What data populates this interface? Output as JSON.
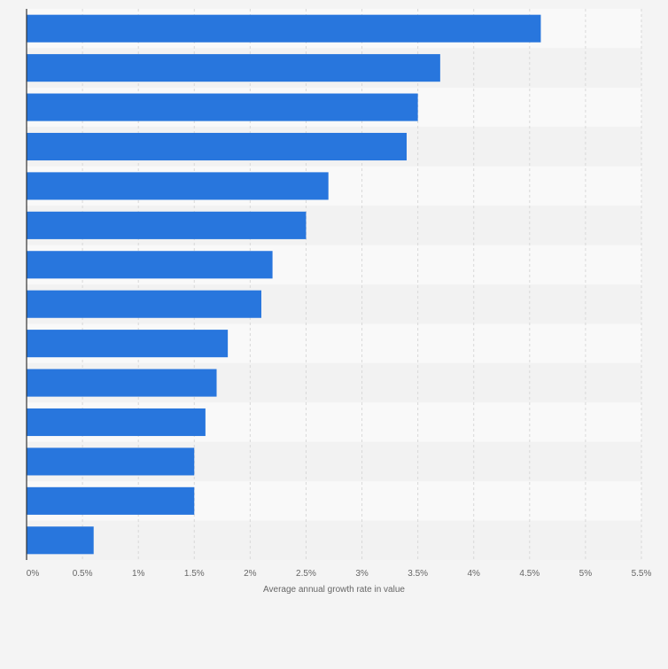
{
  "chart_data": {
    "type": "bar",
    "orientation": "horizontal",
    "title": "",
    "xlabel": "Average annual growth rate in value",
    "ylabel": "",
    "categories": [
      "",
      "",
      "",
      "",
      "",
      "",
      "",
      "",
      "",
      "",
      "",
      "",
      "",
      ""
    ],
    "values": [
      4.6,
      3.7,
      3.5,
      3.4,
      2.7,
      2.5,
      2.2,
      2.1,
      1.8,
      1.7,
      1.6,
      1.5,
      1.5,
      0.6
    ],
    "xlim": [
      0,
      5.5
    ],
    "ticks": [
      0,
      0.5,
      1,
      1.5,
      2,
      2.5,
      3,
      3.5,
      4,
      4.5,
      5,
      5.5
    ],
    "tick_labels": [
      "0%",
      "0.5%",
      "1%",
      "1.5%",
      "2%",
      "2.5%",
      "3%",
      "3.5%",
      "4%",
      "4.5%",
      "5%",
      "5.5%"
    ],
    "grid": true,
    "legend": "none",
    "colors": {
      "bar": "#2876dd",
      "background": "#f4f4f4",
      "band_light": "#f9f9f9",
      "band_dark": "#f2f2f2",
      "grid": "#d8d8d8",
      "axis": "#333333",
      "text": "#666666"
    }
  }
}
